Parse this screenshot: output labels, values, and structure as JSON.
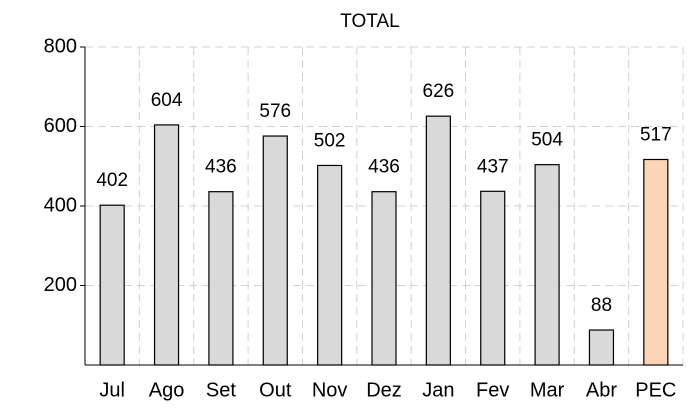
{
  "chart_data": {
    "type": "bar",
    "title": "TOTAL",
    "categories": [
      "Jul",
      "Ago",
      "Set",
      "Out",
      "Nov",
      "Dez",
      "Jan",
      "Fev",
      "Mar",
      "Abr",
      "PEC"
    ],
    "values": [
      402,
      604,
      436,
      576,
      502,
      436,
      626,
      437,
      504,
      88,
      517
    ],
    "colors": [
      "#d9d9d9",
      "#d9d9d9",
      "#d9d9d9",
      "#d9d9d9",
      "#d9d9d9",
      "#d9d9d9",
      "#d9d9d9",
      "#d9d9d9",
      "#d9d9d9",
      "#d9d9d9",
      "#fbd5b5"
    ],
    "ylim": [
      0,
      800
    ],
    "yticks": [
      200,
      400,
      600,
      800
    ],
    "grid": true
  }
}
